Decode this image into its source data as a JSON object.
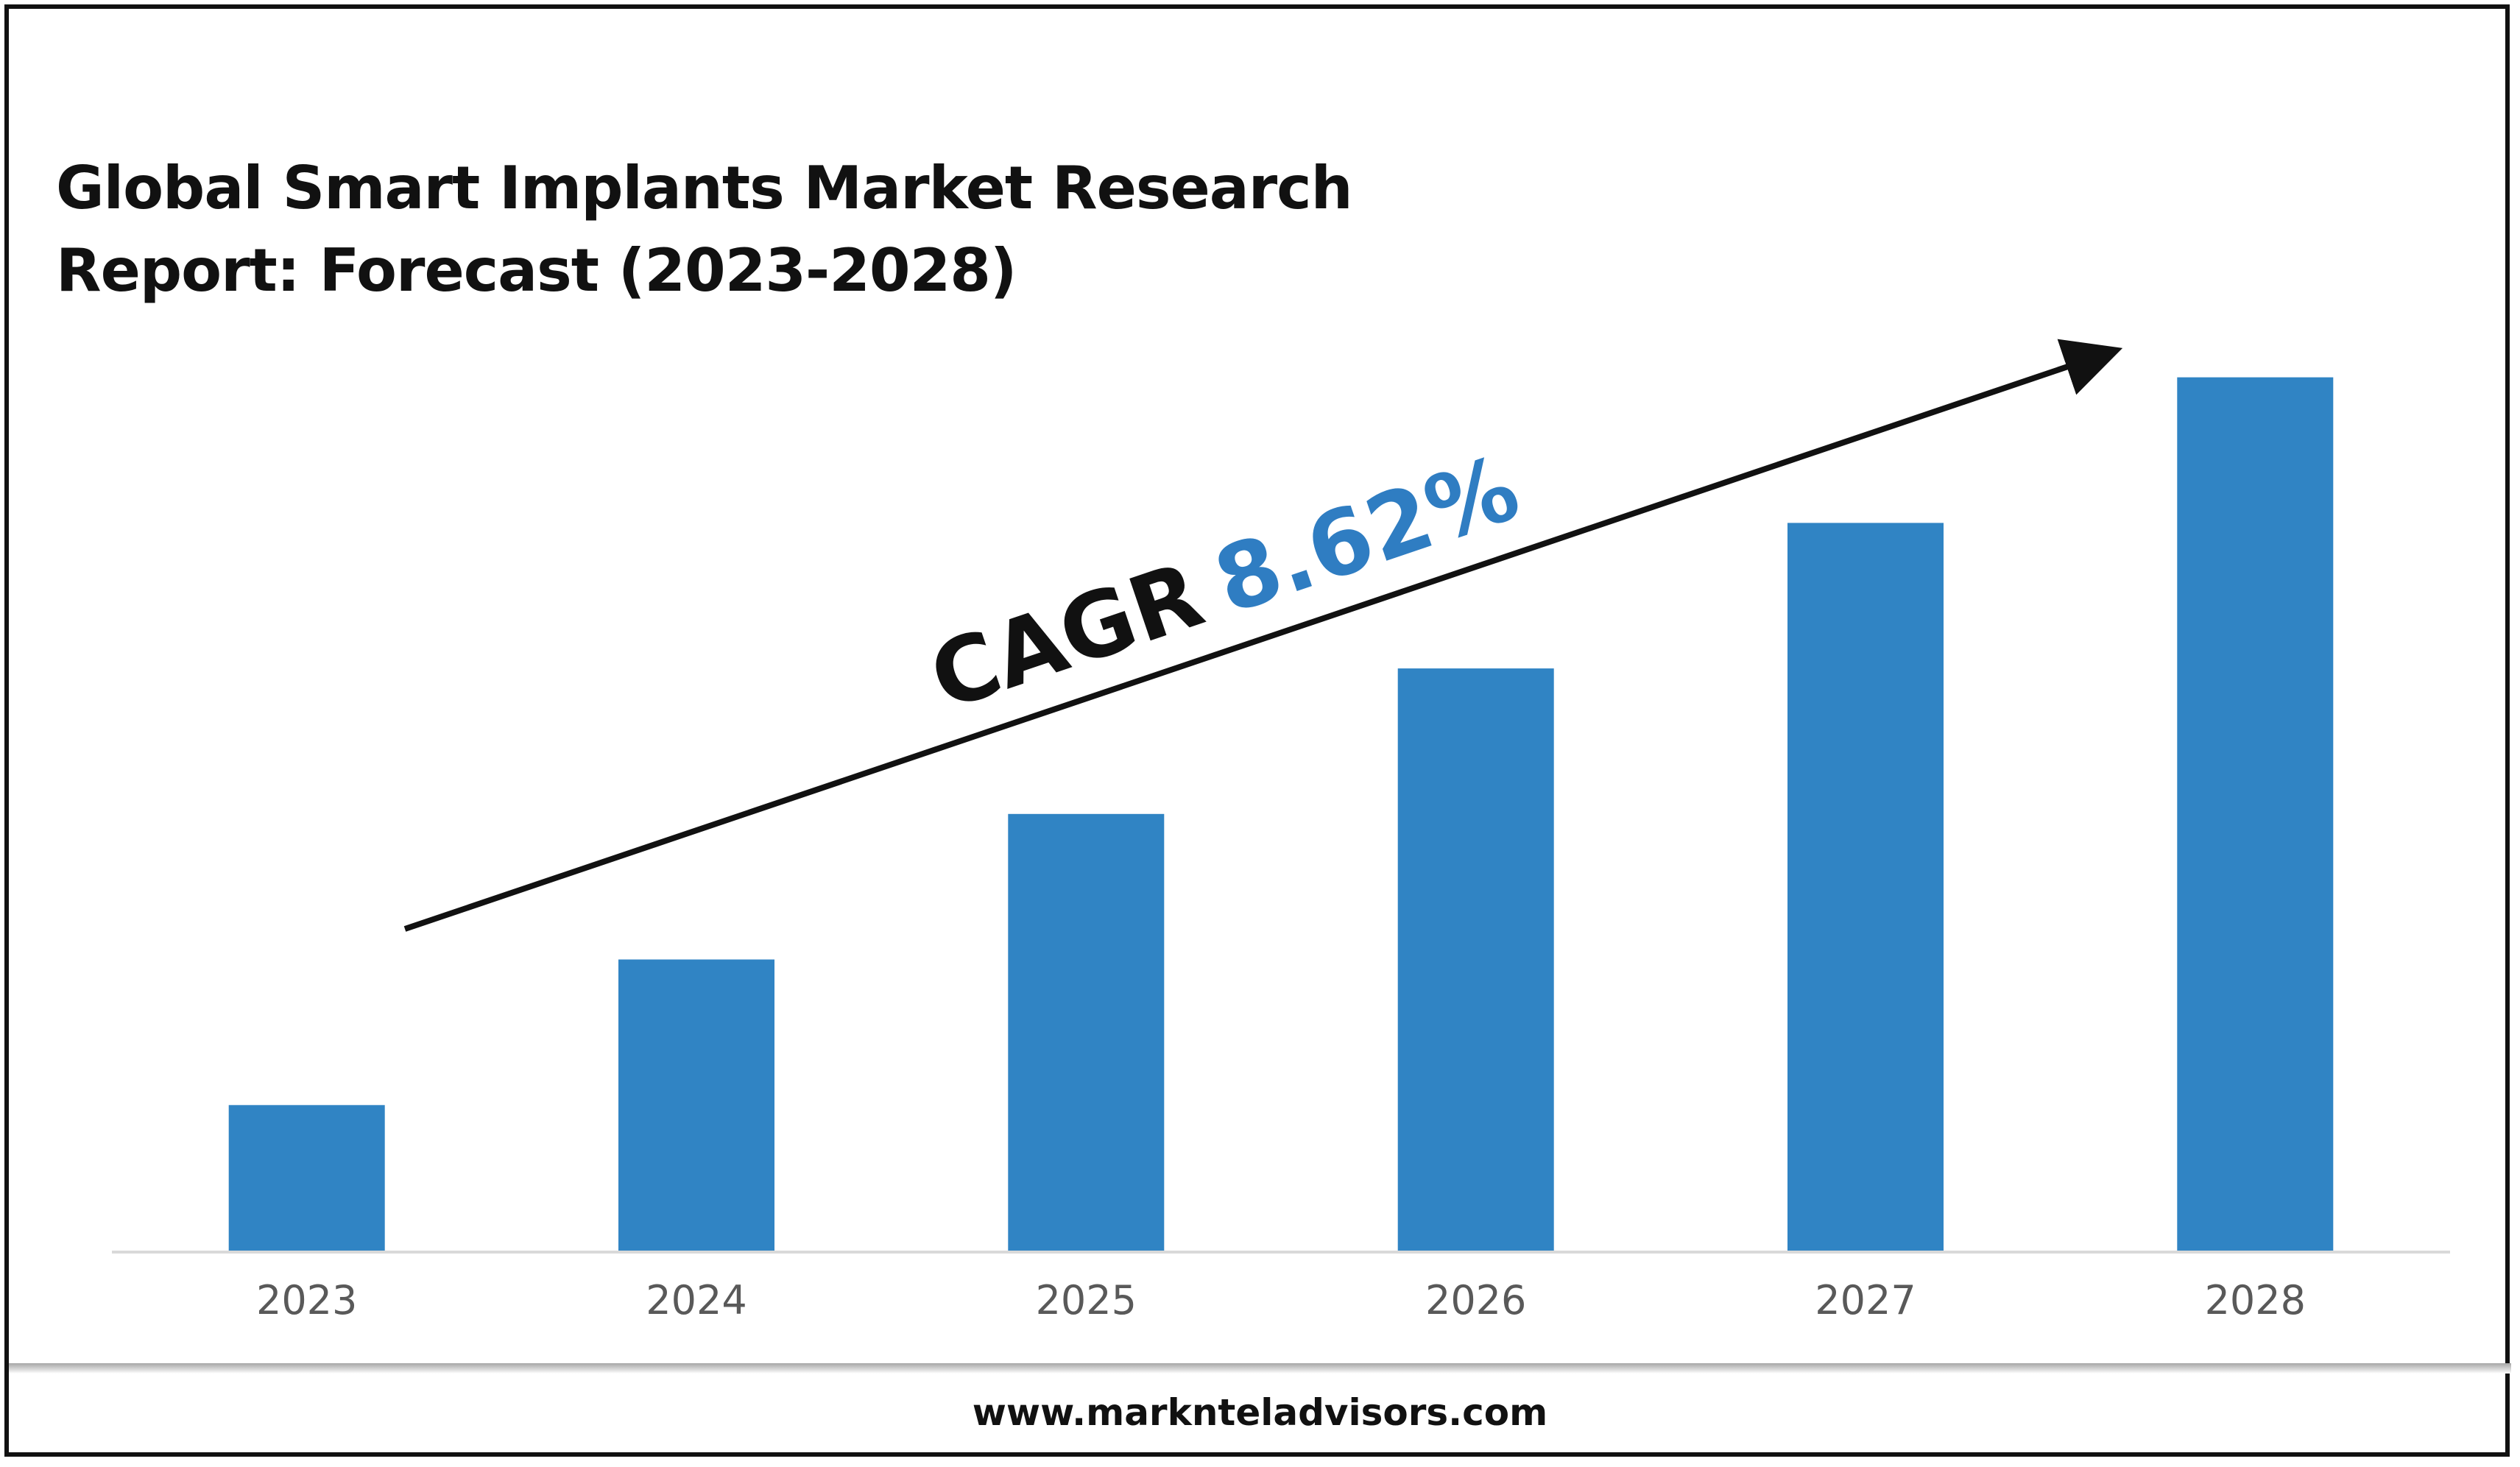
{
  "title_lines": [
    "Global Smart Implants Market Research",
    "Report: Forecast (2023-2028)"
  ],
  "cagr_label": "CAGR",
  "cagr_value": "8.62%",
  "footer_url": "www.marknteladvisors.com",
  "colors": {
    "bar": "#3084C4",
    "cagr_value": "#2F7DC2",
    "text": "#111111",
    "axis_label": "#595959",
    "baseline": "#D9D9D9"
  },
  "chart_data": {
    "type": "bar",
    "categories": [
      "2023",
      "2024",
      "2025",
      "2026",
      "2027",
      "2028"
    ],
    "values": [
      1,
      2,
      3,
      4,
      5,
      6
    ],
    "ylim": [
      0,
      6.6
    ],
    "grid": false,
    "title": "Global Smart Implants Market Research Report: Forecast (2023-2028)",
    "xlabel": "",
    "ylabel": "",
    "annotations": [
      "CAGR 8.62%"
    ]
  }
}
